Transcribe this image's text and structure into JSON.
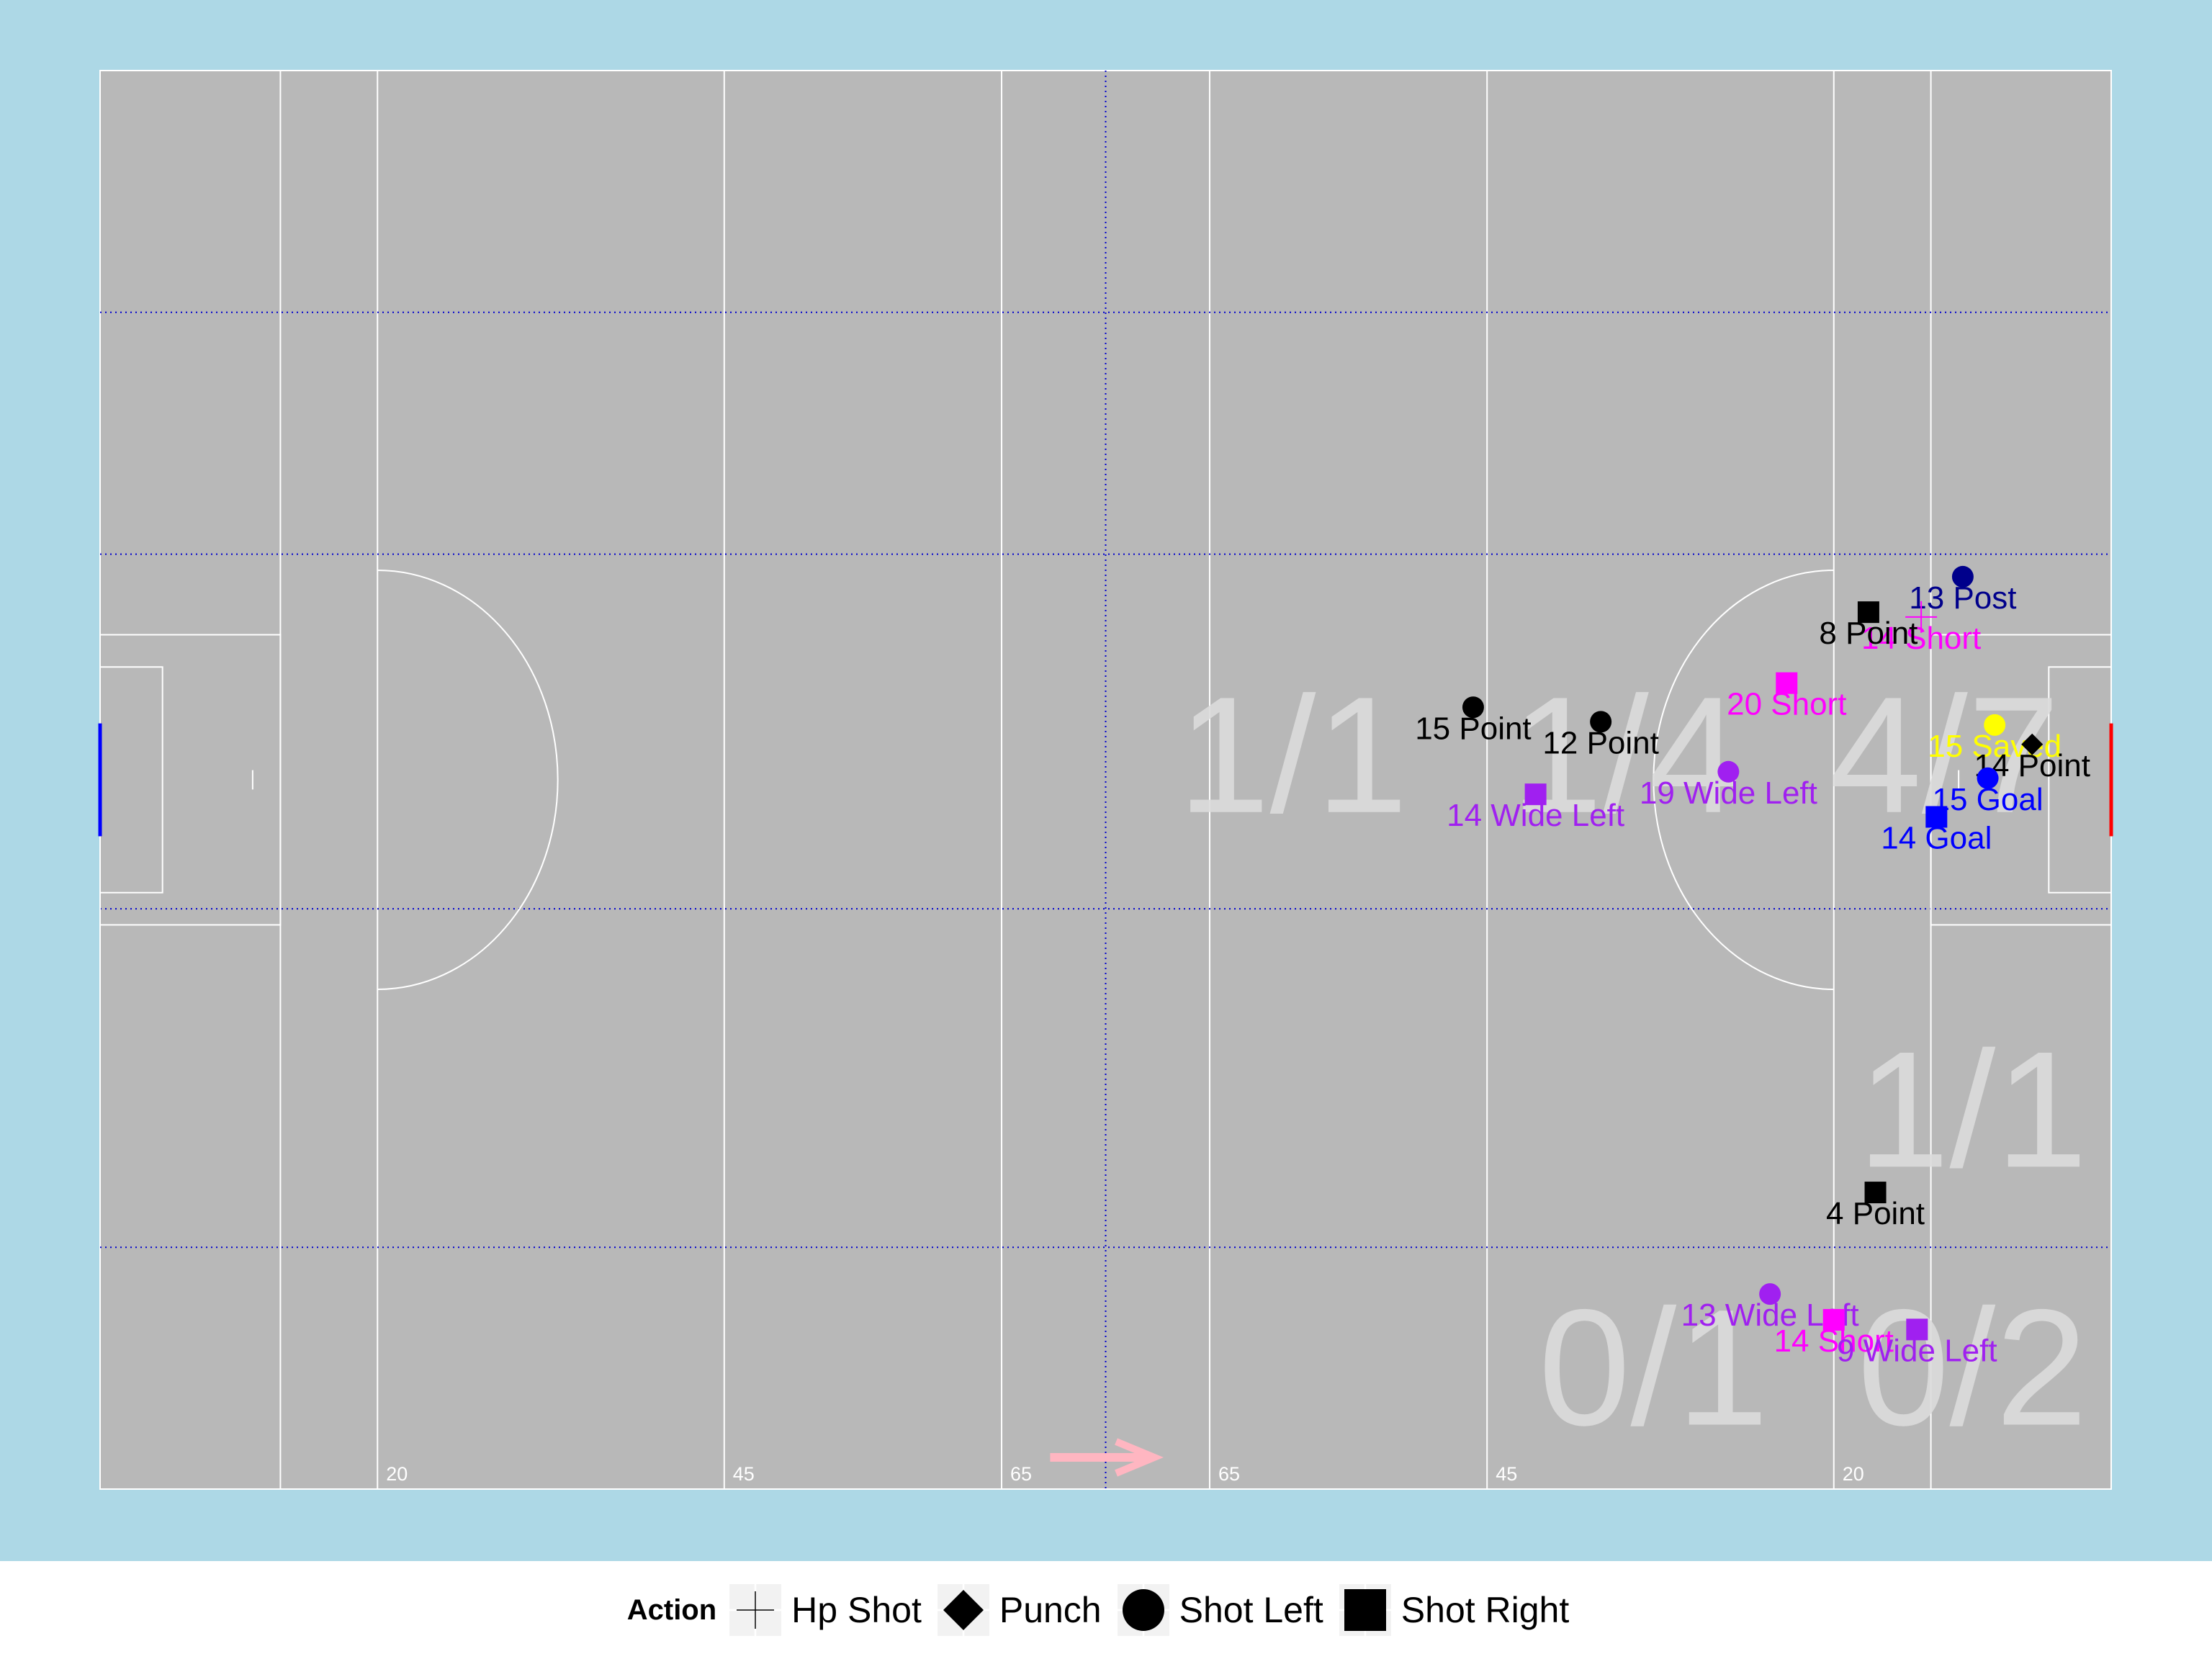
{
  "chart_data": {
    "type": "scatter",
    "title": "",
    "xlabel": "",
    "ylabel": "",
    "xlim": [
      0,
      145
    ],
    "ylim": [
      0,
      88
    ],
    "attack_direction": "right",
    "line_labels": [
      {
        "text": "20",
        "x": 20
      },
      {
        "text": "45",
        "x": 45
      },
      {
        "text": "65",
        "x": 65
      },
      {
        "text": "65",
        "x": 80
      },
      {
        "text": "45",
        "x": 100
      },
      {
        "text": "20",
        "x": 125
      }
    ],
    "zone_stats": [
      {
        "text": "1/1",
        "x": 86,
        "y": 42
      },
      {
        "text": "1/4",
        "x": 110,
        "y": 42
      },
      {
        "text": "4/7",
        "x": 133,
        "y": 42
      },
      {
        "text": "1/1",
        "x": 135,
        "y": 20
      },
      {
        "text": "0/1",
        "x": 112,
        "y": 4
      },
      {
        "text": "0/2",
        "x": 135,
        "y": 4
      }
    ],
    "points": [
      {
        "label": "13 Post",
        "action": "Shot Left",
        "color": "#00008b",
        "x": 134.3,
        "y": 56.6
      },
      {
        "label": "14 Short",
        "action": "Hp Shot",
        "color": "#ff00ff",
        "x": 131.3,
        "y": 54.1
      },
      {
        "label": "8 Point",
        "action": "Shot Right",
        "color": "#000000",
        "x": 127.5,
        "y": 54.4
      },
      {
        "label": "20 Short",
        "action": "Shot Right",
        "color": "#ff00ff",
        "x": 121.6,
        "y": 50.0
      },
      {
        "label": "15 Saved",
        "action": "Shot Left",
        "color": "#ffff00",
        "x": 136.6,
        "y": 47.4
      },
      {
        "label": "14 Point",
        "action": "Punch",
        "color": "#000000",
        "x": 139.3,
        "y": 46.2
      },
      {
        "label": "15 Goal",
        "action": "Shot Left",
        "color": "#0000ff",
        "x": 136.1,
        "y": 44.1
      },
      {
        "label": "14 Goal",
        "action": "Shot Right",
        "color": "#0000ff",
        "x": 132.4,
        "y": 41.7
      },
      {
        "label": "15 Point",
        "action": "Shot Left",
        "color": "#000000",
        "x": 99.0,
        "y": 48.5
      },
      {
        "label": "12 Point",
        "action": "Shot Left",
        "color": "#000000",
        "x": 108.2,
        "y": 47.6
      },
      {
        "label": "14 Wide Left",
        "action": "Shot Right",
        "color": "#a020f0",
        "x": 103.5,
        "y": 43.1
      },
      {
        "label": "19 Wide Left",
        "action": "Shot Left",
        "color": "#a020f0",
        "x": 117.4,
        "y": 44.5
      },
      {
        "label": "4 Point",
        "action": "Shot Right",
        "color": "#000000",
        "x": 128.0,
        "y": 18.4
      },
      {
        "label": "13 Wide Left",
        "action": "Shot Left",
        "color": "#a020f0",
        "x": 120.4,
        "y": 12.1
      },
      {
        "label": "14 Short",
        "action": "Shot Right",
        "color": "#ff00ff",
        "x": 125.0,
        "y": 10.5
      },
      {
        "label": "9 Wide Left",
        "action": "Shot Right",
        "color": "#a020f0",
        "x": 131.0,
        "y": 9.9
      }
    ],
    "legend": {
      "title": "Action",
      "placement": "bottom",
      "items": [
        {
          "label": "Hp Shot",
          "shape": "plus-icon"
        },
        {
          "label": "Punch",
          "shape": "diamond-icon"
        },
        {
          "label": "Shot Left",
          "shape": "circle-icon"
        },
        {
          "label": "Shot Right",
          "shape": "square-icon"
        }
      ]
    }
  },
  "colors": {
    "outer_background": "#add8e6",
    "pitch": "#b8b8b8",
    "pitch_lines": "#ffffff",
    "zone_lines": "#0000cd",
    "zone_stat_text": "#dcdcdc",
    "arrow": "#ffb6c1",
    "left_goal": "#0000ff",
    "right_goal": "#ff0000"
  }
}
